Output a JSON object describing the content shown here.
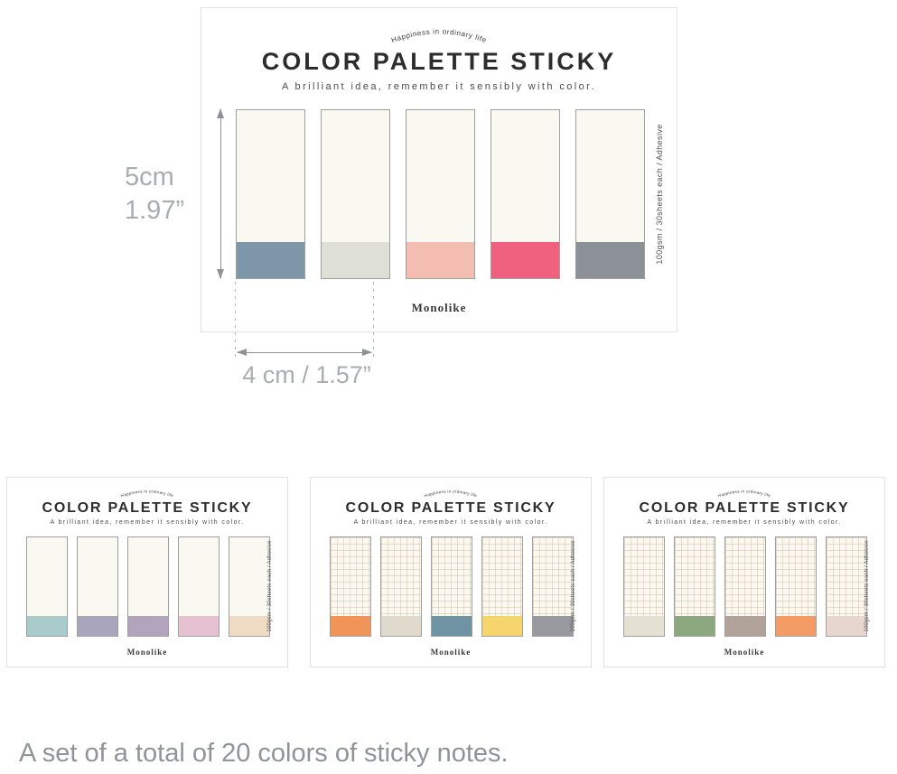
{
  "page": {
    "caption": "A set of a total of 20 colors of sticky notes."
  },
  "brand": {
    "arc_tagline": "Happiness in ordinary life",
    "title": "COLOR PALETTE STICKY",
    "subtitle": "A brilliant idea, remember it sensibly with color.",
    "logo": "Monolike",
    "spec_vertical": "100gsm / 30sheets each / Adhesive"
  },
  "dimensions": {
    "height_cm": "5cm",
    "height_inch": "1.97”",
    "width_label": "4 cm / 1.57”"
  },
  "main_card": {
    "pattern": "plain",
    "strips": [
      "#7E97A8",
      "#DEE0D7",
      "#F3BEB1",
      "#EF617E",
      "#8B9197"
    ]
  },
  "mini_cards": [
    {
      "pattern": "plain",
      "strips": [
        "#A9CBCB",
        "#A8A5BD",
        "#B3A4BE",
        "#E5C1D2",
        "#EFDAC4"
      ]
    },
    {
      "pattern": "grid",
      "strips": [
        "#F1945A",
        "#DFDACB",
        "#6E93A3",
        "#F6D56E",
        "#97999E"
      ]
    },
    {
      "pattern": "grid",
      "strips": [
        "#E4E1D2",
        "#8CA87E",
        "#B1A29A",
        "#F49C66",
        "#E6D6CF"
      ]
    }
  ],
  "theme": {
    "card_border": "#e2e2e2",
    "note_border": "#9f9f9d",
    "note_body": "#F9F8F1",
    "grid_line": "#D8C9AE",
    "arrow": "#8d9297",
    "dimension_text": "#A9ADB1",
    "caption_text": "#8F9498",
    "title_text": "#2d2d2d"
  }
}
